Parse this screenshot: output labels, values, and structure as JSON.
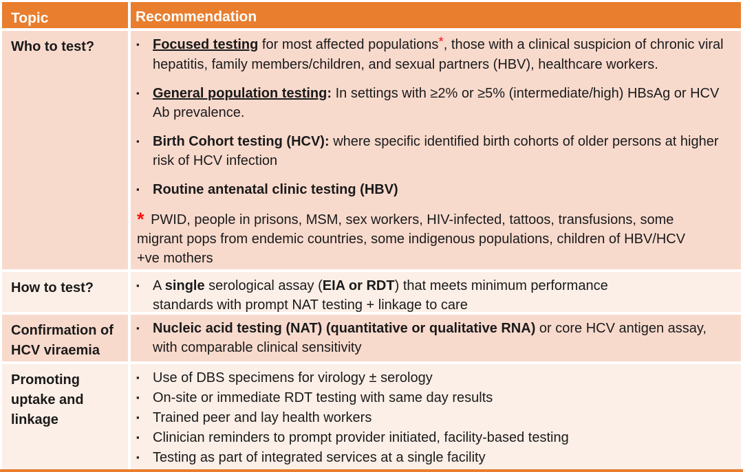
{
  "colors": {
    "header_bg": "#E87E2E",
    "band_dark": "#F8DACD",
    "band_light": "#FCEFE7",
    "accent_red": "#FE0D0D",
    "text": "#1A1A1A",
    "divider": "#FFFFFF"
  },
  "bullet_marker": "▪",
  "header": {
    "topic": "Topic",
    "recommendation": "Recommendation"
  },
  "rows": [
    {
      "topic": "Who to test?",
      "topic_lines": [
        "Who to test?"
      ],
      "bullets": [
        {
          "segments": [
            {
              "text": "Focused testing",
              "style": "bold-underline"
            },
            {
              "text": " for most affected populations",
              "style": "normal"
            },
            {
              "text": "*",
              "style": "red-superscript"
            },
            {
              "text": ", those with a clinical suspicion of chronic viral hepatitis, family members/children, and sexual partners (HBV), healthcare workers.",
              "style": "normal"
            }
          ]
        },
        {
          "segments": [
            {
              "text": "General population testing",
              "style": "bold-underline"
            },
            {
              "text": ":",
              "style": "bold"
            },
            {
              "text": " In settings with ≥2% or ≥5% (intermediate/high) HBsAg  or HCV Ab prevalence.",
              "style": "normal"
            }
          ]
        },
        {
          "segments": [
            {
              "text": "Birth Cohort testing (HCV):",
              "style": "bold"
            },
            {
              "text": " where specific identified birth cohorts of older persons at higher risk of HCV infection",
              "style": "normal"
            }
          ]
        },
        {
          "segments": [
            {
              "text": "Routine antenatal clinic testing (HBV)",
              "style": "bold"
            }
          ]
        }
      ],
      "footnote": {
        "asterisk": "*",
        "text": " PWID, people in prisons, MSM, sex workers, HIV-infected, tattoos, transfusions, some migrant pops from endemic countries, some indigenous populations, children of HBV/HCV +ve mothers"
      }
    },
    {
      "topic": "How to test?",
      "topic_lines": [
        "How to test?"
      ],
      "bullets": [
        {
          "segments": [
            {
              "text": "A ",
              "style": "normal"
            },
            {
              "text": "single",
              "style": "bold"
            },
            {
              "text": " serological assay (",
              "style": "normal"
            },
            {
              "text": "EIA or RDT",
              "style": "bold"
            },
            {
              "text": ") that meets minimum performance standards with prompt NAT testing + linkage to care",
              "style": "normal"
            }
          ]
        }
      ]
    },
    {
      "topic": "Confirmation of HCV viraemia",
      "topic_lines": [
        "Confirmation of",
        "HCV viraemia"
      ],
      "bullets": [
        {
          "segments": [
            {
              "text": "Nucleic acid testing (NAT) (quantitative or qualitative RNA)",
              "style": "bold"
            },
            {
              "text": " or core HCV antigen assay, with comparable clinical sensitivity",
              "style": "normal"
            }
          ]
        }
      ]
    },
    {
      "topic": "Promoting uptake and linkage",
      "topic_lines": [
        "Promoting",
        "uptake and",
        "linkage"
      ],
      "bullets": [
        {
          "segments": [
            {
              "text": "Use of DBS specimens for virology ± serology",
              "style": "normal"
            }
          ]
        },
        {
          "segments": [
            {
              "text": "On-site or immediate RDT testing with same day results",
              "style": "normal"
            }
          ]
        },
        {
          "segments": [
            {
              "text": "Trained peer and lay health workers",
              "style": "normal"
            }
          ]
        },
        {
          "segments": [
            {
              "text": "Clinician reminders to prompt provider initiated, facility-based testing",
              "style": "normal"
            }
          ]
        },
        {
          "segments": [
            {
              "text": "Testing as part of integrated services at a single facility",
              "style": "normal"
            }
          ]
        }
      ]
    }
  ]
}
